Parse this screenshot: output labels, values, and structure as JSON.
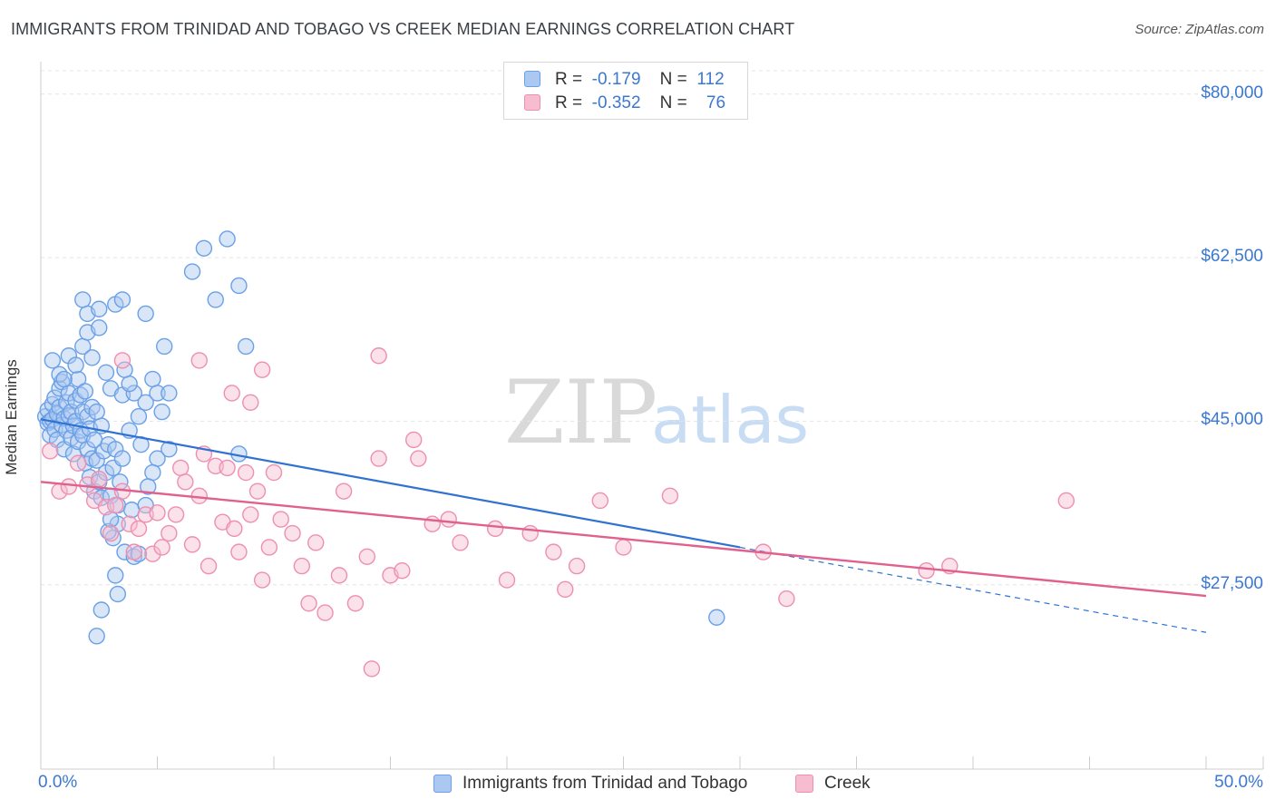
{
  "title": "IMMIGRANTS FROM TRINIDAD AND TOBAGO VS CREEK MEDIAN EARNINGS CORRELATION CHART",
  "source": "Source: ZipAtlas.com",
  "watermark": {
    "zip": "ZIP",
    "atlas": "atlas"
  },
  "legend": {
    "rows": [
      {
        "r_label": "R =",
        "r_value": "-0.179",
        "n_label": "N =",
        "n_value": "112"
      },
      {
        "r_label": "R =",
        "r_value": "-0.352",
        "n_label": "N =",
        "n_value": "76"
      }
    ]
  },
  "colors": {
    "blue": "#6aa0e8",
    "blue_fill": "#aac8f0",
    "blue_line": "#2f72d2",
    "pink": "#ee8fb0",
    "pink_fill": "#f6bdd0",
    "pink_line": "#e0608e",
    "tick_text": "#3b78d0",
    "grid": "#e4e4e4"
  },
  "chart_data": {
    "type": "scatter",
    "title": "IMMIGRANTS FROM TRINIDAD AND TOBAGO VS CREEK MEDIAN EARNINGS CORRELATION CHART",
    "xlabel": "",
    "ylabel": "Median Earnings",
    "xlim": [
      0,
      50
    ],
    "ylim": [
      10000,
      82500
    ],
    "x_tick_labels": [
      "0.0%",
      "50.0%"
    ],
    "y_ticks": [
      {
        "value": 27500,
        "label": "$27,500"
      },
      {
        "value": 45000,
        "label": "$45,000"
      },
      {
        "value": 62500,
        "label": "$62,500"
      },
      {
        "value": 80000,
        "label": "$80,000"
      }
    ],
    "grid": true,
    "legend_position": "bottom",
    "series": [
      {
        "name": "Immigrants from Trinidad and Tobago",
        "color": "#6aa0e8",
        "r": -0.179,
        "n": 112,
        "trend": {
          "x0": 0,
          "y0": 45200,
          "x1": 30,
          "y1": 31500,
          "dash_to_x": 50,
          "dash_to_y": 22400
        },
        "points": [
          [
            0.2,
            45.5
          ],
          [
            0.3,
            44.8
          ],
          [
            0.3,
            46.2
          ],
          [
            0.4,
            45.0
          ],
          [
            0.4,
            43.5
          ],
          [
            0.5,
            46.8
          ],
          [
            0.5,
            45.2
          ],
          [
            0.6,
            44.1
          ],
          [
            0.6,
            47.5
          ],
          [
            0.7,
            45.8
          ],
          [
            0.7,
            43.0
          ],
          [
            0.8,
            46.5
          ],
          [
            0.8,
            48.5
          ],
          [
            0.9,
            44.6
          ],
          [
            0.9,
            49.2
          ],
          [
            1.0,
            45.3
          ],
          [
            1.0,
            42.0
          ],
          [
            1.1,
            47.0
          ],
          [
            1.1,
            44.0
          ],
          [
            1.2,
            45.6
          ],
          [
            1.2,
            48.0
          ],
          [
            1.3,
            43.2
          ],
          [
            1.3,
            46.0
          ],
          [
            1.4,
            44.5
          ],
          [
            1.4,
            41.5
          ],
          [
            1.5,
            47.2
          ],
          [
            1.5,
            45.0
          ],
          [
            1.6,
            42.8
          ],
          [
            1.6,
            49.5
          ],
          [
            1.7,
            44.0
          ],
          [
            1.7,
            47.8
          ],
          [
            1.8,
            46.0
          ],
          [
            1.8,
            43.5
          ],
          [
            1.9,
            40.5
          ],
          [
            1.9,
            48.2
          ],
          [
            2.0,
            45.5
          ],
          [
            2.0,
            42.0
          ],
          [
            2.1,
            44.2
          ],
          [
            2.1,
            39.0
          ],
          [
            2.2,
            46.5
          ],
          [
            2.2,
            41.0
          ],
          [
            2.3,
            43.0
          ],
          [
            2.3,
            37.5
          ],
          [
            2.4,
            40.8
          ],
          [
            2.5,
            38.5
          ],
          [
            2.6,
            44.5
          ],
          [
            2.6,
            36.8
          ],
          [
            2.7,
            41.8
          ],
          [
            2.8,
            39.5
          ],
          [
            2.9,
            42.5
          ],
          [
            3.0,
            37.0
          ],
          [
            3.1,
            40.0
          ],
          [
            3.2,
            42.0
          ],
          [
            3.3,
            36.0
          ],
          [
            3.4,
            38.5
          ],
          [
            3.5,
            41.0
          ],
          [
            0.5,
            51.5
          ],
          [
            0.8,
            50.0
          ],
          [
            1.0,
            49.5
          ],
          [
            1.2,
            52.0
          ],
          [
            1.5,
            51.0
          ],
          [
            1.8,
            53.0
          ],
          [
            2.0,
            54.5
          ],
          [
            2.2,
            51.8
          ],
          [
            2.5,
            55.0
          ],
          [
            2.8,
            50.2
          ],
          [
            3.0,
            48.5
          ],
          [
            3.5,
            47.8
          ],
          [
            4.0,
            48.0
          ],
          [
            4.5,
            47.0
          ],
          [
            3.8,
            49.0
          ],
          [
            4.2,
            45.5
          ],
          [
            4.8,
            49.5
          ],
          [
            5.0,
            48.0
          ],
          [
            2.0,
            56.5
          ],
          [
            2.5,
            57.0
          ],
          [
            1.8,
            58.0
          ],
          [
            3.2,
            57.5
          ],
          [
            3.5,
            58.0
          ],
          [
            4.5,
            56.5
          ],
          [
            3.6,
            50.5
          ],
          [
            2.4,
            46.0
          ],
          [
            3.8,
            44.0
          ],
          [
            4.3,
            42.5
          ],
          [
            5.2,
            46.0
          ],
          [
            5.5,
            42.0
          ],
          [
            5.0,
            41.0
          ],
          [
            4.8,
            39.5
          ],
          [
            4.6,
            38.0
          ],
          [
            3.9,
            35.5
          ],
          [
            3.3,
            34.0
          ],
          [
            3.1,
            32.5
          ],
          [
            2.9,
            33.2
          ],
          [
            3.6,
            31.0
          ],
          [
            4.0,
            30.5
          ],
          [
            4.2,
            30.8
          ],
          [
            3.2,
            28.5
          ],
          [
            3.3,
            26.5
          ],
          [
            2.6,
            24.8
          ],
          [
            2.4,
            22.0
          ],
          [
            4.5,
            36.0
          ],
          [
            3.0,
            34.5
          ],
          [
            5.3,
            53.0
          ],
          [
            5.5,
            48.0
          ],
          [
            6.5,
            61.0
          ],
          [
            7.0,
            63.5
          ],
          [
            7.5,
            58.0
          ],
          [
            8.0,
            64.5
          ],
          [
            8.5,
            59.5
          ],
          [
            8.8,
            53.0
          ],
          [
            29.0,
            24.0
          ],
          [
            8.5,
            41.5
          ]
        ]
      },
      {
        "name": "Creek",
        "color": "#ee8fb0",
        "r": -0.352,
        "n": 76,
        "trend": {
          "x0": 0,
          "y0": 38500,
          "x1": 50,
          "y1": 26300
        },
        "points": [
          [
            0.4,
            41.8
          ],
          [
            0.8,
            37.5
          ],
          [
            1.2,
            38.0
          ],
          [
            1.6,
            40.5
          ],
          [
            2.0,
            38.2
          ],
          [
            2.3,
            36.5
          ],
          [
            2.5,
            38.8
          ],
          [
            2.8,
            35.8
          ],
          [
            3.0,
            33.0
          ],
          [
            3.2,
            36.0
          ],
          [
            3.5,
            37.5
          ],
          [
            3.8,
            34.0
          ],
          [
            4.0,
            31.0
          ],
          [
            4.2,
            33.5
          ],
          [
            4.5,
            35.0
          ],
          [
            4.8,
            30.8
          ],
          [
            5.0,
            35.2
          ],
          [
            5.2,
            31.5
          ],
          [
            5.5,
            33.0
          ],
          [
            5.8,
            35.0
          ],
          [
            6.0,
            40.0
          ],
          [
            6.2,
            38.5
          ],
          [
            6.5,
            31.8
          ],
          [
            6.8,
            37.0
          ],
          [
            7.0,
            41.5
          ],
          [
            7.2,
            29.5
          ],
          [
            7.5,
            40.2
          ],
          [
            7.8,
            34.2
          ],
          [
            8.0,
            40.0
          ],
          [
            8.3,
            33.5
          ],
          [
            8.5,
            31.0
          ],
          [
            8.8,
            39.5
          ],
          [
            9.0,
            35.0
          ],
          [
            9.3,
            37.5
          ],
          [
            9.5,
            28.0
          ],
          [
            9.8,
            31.5
          ],
          [
            10.0,
            39.5
          ],
          [
            10.3,
            34.5
          ],
          [
            10.8,
            33.0
          ],
          [
            11.2,
            29.5
          ],
          [
            11.5,
            25.5
          ],
          [
            11.8,
            32.0
          ],
          [
            12.2,
            24.5
          ],
          [
            12.8,
            28.5
          ],
          [
            13.0,
            37.5
          ],
          [
            13.5,
            25.5
          ],
          [
            14.0,
            30.5
          ],
          [
            14.2,
            18.5
          ],
          [
            14.5,
            41.0
          ],
          [
            15.0,
            28.5
          ],
          [
            15.5,
            29.0
          ],
          [
            16.0,
            43.0
          ],
          [
            16.2,
            41.0
          ],
          [
            16.8,
            34.0
          ],
          [
            17.5,
            34.5
          ],
          [
            18.0,
            32.0
          ],
          [
            19.5,
            33.5
          ],
          [
            20.0,
            28.0
          ],
          [
            21.0,
            33.0
          ],
          [
            22.0,
            31.0
          ],
          [
            22.5,
            27.0
          ],
          [
            23.0,
            29.5
          ],
          [
            24.0,
            36.5
          ],
          [
            25.0,
            31.5
          ],
          [
            27.0,
            37.0
          ],
          [
            31.0,
            31.0
          ],
          [
            32.0,
            26.0
          ],
          [
            38.0,
            29.0
          ],
          [
            39.0,
            29.5
          ],
          [
            44.0,
            36.5
          ],
          [
            6.8,
            51.5
          ],
          [
            9.5,
            50.5
          ],
          [
            14.5,
            52.0
          ],
          [
            9.0,
            47.0
          ],
          [
            8.2,
            48.0
          ],
          [
            3.5,
            51.5
          ]
        ]
      }
    ]
  },
  "bottom_legend": [
    {
      "label": "Immigrants from Trinidad and Tobago"
    },
    {
      "label": "Creek"
    }
  ]
}
